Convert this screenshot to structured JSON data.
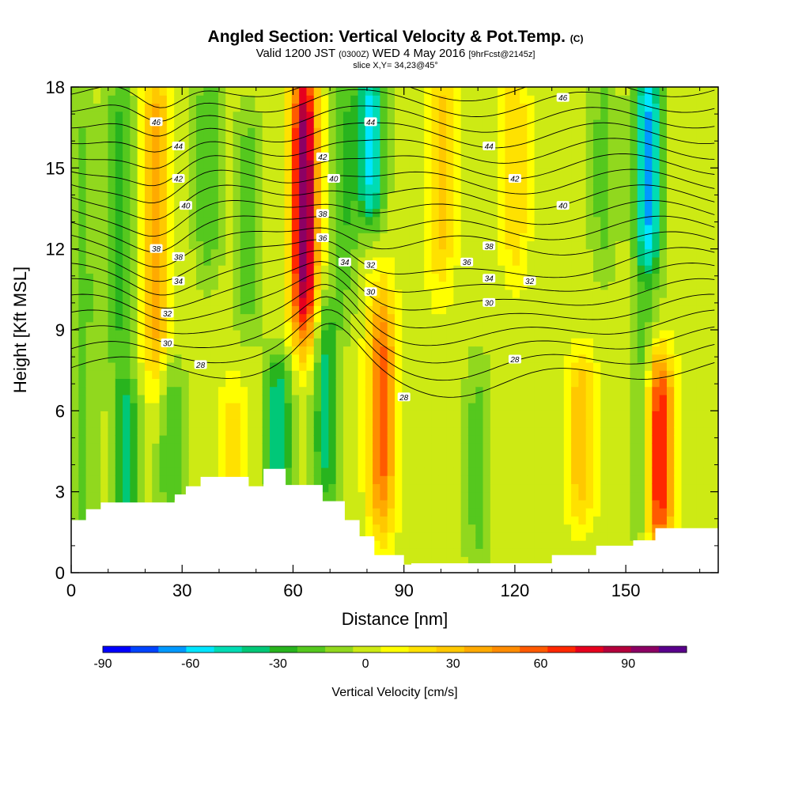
{
  "header": {
    "title": "Angled Section: Vertical Velocity & Pot.Temp.",
    "title_mark": "(C)",
    "subtitle_a": "Valid 1200 JST",
    "subtitle_b": "(0300Z)",
    "subtitle_c": "WED 4 May 2016",
    "subtitle_d": "[9hrFcst@2145z]",
    "slice": "slice X,Y= 34,23@45°"
  },
  "chart_data": {
    "type": "heatmap",
    "xlabel": "Distance [nm]",
    "ylabel": "Height [Kft MSL]",
    "xlim": [
      0,
      175
    ],
    "ylim": [
      0,
      18
    ],
    "x_ticks": [
      0,
      30,
      60,
      90,
      120,
      150
    ],
    "x_tick_labels": [
      "0",
      "30",
      "60",
      "90",
      "120",
      "150"
    ],
    "y_ticks": [
      0,
      3,
      6,
      9,
      12,
      15,
      18
    ],
    "y_tick_labels": [
      "0",
      "3",
      "6",
      "9",
      "12",
      "15",
      "18"
    ],
    "colorbar": {
      "label": "Vertical Velocity [cm/s]",
      "min": -90,
      "max": 110,
      "step": 10,
      "tick_values": [
        -90,
        -60,
        -30,
        0,
        30,
        60,
        90
      ],
      "tick_labels": [
        "-90",
        "-60",
        "-30",
        "0",
        "30",
        "60",
        "90"
      ],
      "colors": [
        "#0000ff",
        "#0044ff",
        "#0099ff",
        "#00e5ff",
        "#00dcb4",
        "#00c878",
        "#28b41e",
        "#55c81e",
        "#91d81e",
        "#cdea14",
        "#ffff00",
        "#ffe100",
        "#ffc800",
        "#ffaa00",
        "#ff8c00",
        "#ff5a00",
        "#ff2800",
        "#e6001e",
        "#b4003c",
        "#8c0064",
        "#5a008c"
      ]
    },
    "terrain": [
      [
        0,
        1.95
      ],
      [
        4,
        1.95
      ],
      [
        4,
        2.35
      ],
      [
        8,
        2.35
      ],
      [
        8,
        2.6
      ],
      [
        28,
        2.6
      ],
      [
        28,
        2.9
      ],
      [
        31,
        2.9
      ],
      [
        31,
        3.2
      ],
      [
        35,
        3.2
      ],
      [
        35,
        3.55
      ],
      [
        48,
        3.55
      ],
      [
        48,
        3.2
      ],
      [
        52,
        3.2
      ],
      [
        52,
        3.85
      ],
      [
        58,
        3.85
      ],
      [
        58,
        3.25
      ],
      [
        68,
        3.25
      ],
      [
        68,
        2.65
      ],
      [
        74,
        2.65
      ],
      [
        74,
        1.95
      ],
      [
        78,
        1.95
      ],
      [
        78,
        1.35
      ],
      [
        82,
        1.35
      ],
      [
        82,
        0.65
      ],
      [
        90,
        0.65
      ],
      [
        90,
        0.3
      ],
      [
        92,
        0.3
      ],
      [
        92,
        0.35
      ],
      [
        130,
        0.35
      ],
      [
        130,
        0.65
      ],
      [
        142,
        0.65
      ],
      [
        142,
        1.0
      ],
      [
        152,
        1.0
      ],
      [
        152,
        1.2
      ],
      [
        158,
        1.2
      ],
      [
        158,
        1.65
      ],
      [
        175,
        1.65
      ]
    ],
    "velocity_field": {
      "background": 5,
      "columns": [
        {
          "x": 3,
          "value": -20,
          "zmin": 0,
          "zmax": 18
        },
        {
          "x": 15,
          "value": -40,
          "zmin": 2.5,
          "zmax": 6
        },
        {
          "x": 13,
          "value": -30,
          "zmin": 8,
          "zmax": 18
        },
        {
          "x": 23,
          "value": 45,
          "zmin": 8,
          "zmax": 18
        },
        {
          "x": 27,
          "value": -25,
          "zmin": 3,
          "zmax": 7
        },
        {
          "x": 37,
          "value": -25,
          "zmin": 12,
          "zmax": 18
        },
        {
          "x": 44,
          "value": 20,
          "zmin": 3,
          "zmax": 6
        },
        {
          "x": 48,
          "value": -25,
          "zmin": 10,
          "zmax": 16
        },
        {
          "x": 56,
          "value": -45,
          "zmin": 3.5,
          "zmax": 7
        },
        {
          "x": 63,
          "value": 105,
          "zmin": 9.5,
          "zmax": 18
        },
        {
          "x": 69,
          "value": -40,
          "zmin": 3.5,
          "zmax": 9
        },
        {
          "x": 74,
          "value": -25,
          "zmin": 11,
          "zmax": 18
        },
        {
          "x": 81,
          "value": -60,
          "zmin": 14,
          "zmax": 18
        },
        {
          "x": 84,
          "value": 60,
          "zmin": 2.5,
          "zmax": 9.5
        },
        {
          "x": 100,
          "value": 30,
          "zmin": 11.5,
          "zmax": 18
        },
        {
          "x": 110,
          "value": -20,
          "zmin": 1,
          "zmax": 7
        },
        {
          "x": 120,
          "value": 25,
          "zmin": 12,
          "zmax": 18
        },
        {
          "x": 138,
          "value": 35,
          "zmin": 3,
          "zmax": 7
        },
        {
          "x": 144,
          "value": -20,
          "zmin": 12,
          "zmax": 18
        },
        {
          "x": 156,
          "value": -70,
          "zmin": 12,
          "zmax": 18
        },
        {
          "x": 155,
          "value": -25,
          "zmin": 2,
          "zmax": 9
        },
        {
          "x": 159,
          "value": 85,
          "zmin": 2,
          "zmax": 7
        }
      ]
    },
    "theta_levels": [
      28,
      29,
      30,
      31,
      32,
      33,
      34,
      35,
      36,
      37,
      38,
      39,
      40,
      41,
      42,
      43,
      44,
      45,
      46
    ],
    "theta_labels": [
      {
        "text": "46",
        "x": 23,
        "y": 16.7
      },
      {
        "text": "44",
        "x": 29,
        "y": 15.8
      },
      {
        "text": "42",
        "x": 29,
        "y": 14.6
      },
      {
        "text": "40",
        "x": 31,
        "y": 13.6
      },
      {
        "text": "38",
        "x": 23,
        "y": 12.0
      },
      {
        "text": "38",
        "x": 29,
        "y": 11.7
      },
      {
        "text": "34",
        "x": 29,
        "y": 10.8
      },
      {
        "text": "32",
        "x": 26,
        "y": 9.6
      },
      {
        "text": "30",
        "x": 26,
        "y": 8.5
      },
      {
        "text": "28",
        "x": 35,
        "y": 7.7
      },
      {
        "text": "42",
        "x": 68,
        "y": 15.4
      },
      {
        "text": "40",
        "x": 71,
        "y": 14.6
      },
      {
        "text": "38",
        "x": 68,
        "y": 13.3
      },
      {
        "text": "36",
        "x": 68,
        "y": 12.4
      },
      {
        "text": "34",
        "x": 74,
        "y": 11.5
      },
      {
        "text": "32",
        "x": 81,
        "y": 11.4
      },
      {
        "text": "30",
        "x": 81,
        "y": 10.4
      },
      {
        "text": "44",
        "x": 81,
        "y": 16.7
      },
      {
        "text": "28",
        "x": 90,
        "y": 6.5
      },
      {
        "text": "46",
        "x": 133,
        "y": 17.6
      },
      {
        "text": "44",
        "x": 113,
        "y": 15.8
      },
      {
        "text": "42",
        "x": 120,
        "y": 14.6
      },
      {
        "text": "40",
        "x": 133,
        "y": 13.6
      },
      {
        "text": "38",
        "x": 113,
        "y": 12.1
      },
      {
        "text": "36",
        "x": 107,
        "y": 11.5
      },
      {
        "text": "34",
        "x": 113,
        "y": 10.9
      },
      {
        "text": "32",
        "x": 124,
        "y": 10.8
      },
      {
        "text": "30",
        "x": 113,
        "y": 10.0
      },
      {
        "text": "28",
        "x": 120,
        "y": 7.9
      }
    ]
  }
}
